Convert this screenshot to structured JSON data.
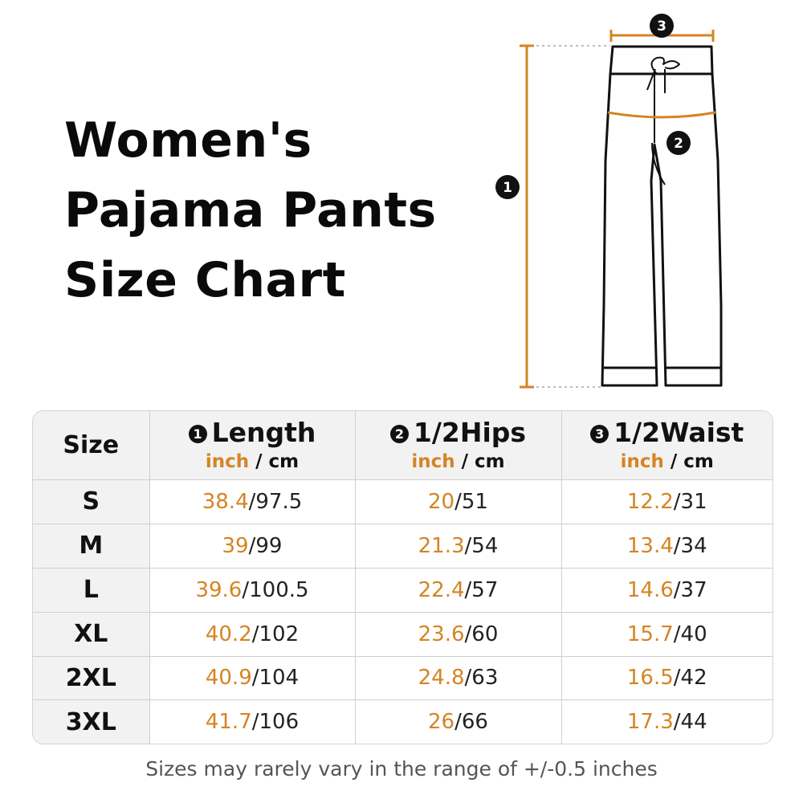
{
  "title": {
    "line1": "Women's",
    "line2": "Pajama Pants",
    "line3": "Size Chart"
  },
  "markers": {
    "length": "1",
    "hips": "2",
    "waist": "3"
  },
  "colors": {
    "accent": "#d58422",
    "text": "#111111",
    "header_bg": "#f2f2f2",
    "border": "#cfcfcf"
  },
  "table": {
    "size_header": "Size",
    "unit_inch": "inch",
    "unit_sep": " / ",
    "unit_cm": "cm",
    "columns": [
      {
        "num": "1",
        "name": "Length"
      },
      {
        "num": "2",
        "name": "1/2Hips"
      },
      {
        "num": "3",
        "name": "1/2Waist"
      }
    ],
    "rows": [
      {
        "size": "S",
        "length": {
          "inch": "38.4",
          "cm": "97.5"
        },
        "hips": {
          "inch": "20",
          "cm": "51"
        },
        "waist": {
          "inch": "12.2",
          "cm": "31"
        }
      },
      {
        "size": "M",
        "length": {
          "inch": "39",
          "cm": "99"
        },
        "hips": {
          "inch": "21.3",
          "cm": "54"
        },
        "waist": {
          "inch": "13.4",
          "cm": "34"
        }
      },
      {
        "size": "L",
        "length": {
          "inch": "39.6",
          "cm": "100.5"
        },
        "hips": {
          "inch": "22.4",
          "cm": "57"
        },
        "waist": {
          "inch": "14.6",
          "cm": "37"
        }
      },
      {
        "size": "XL",
        "length": {
          "inch": "40.2",
          "cm": "102"
        },
        "hips": {
          "inch": "23.6",
          "cm": "60"
        },
        "waist": {
          "inch": "15.7",
          "cm": "40"
        }
      },
      {
        "size": "2XL",
        "length": {
          "inch": "40.9",
          "cm": "104"
        },
        "hips": {
          "inch": "24.8",
          "cm": "63"
        },
        "waist": {
          "inch": "16.5",
          "cm": "42"
        }
      },
      {
        "size": "3XL",
        "length": {
          "inch": "41.7",
          "cm": "106"
        },
        "hips": {
          "inch": "26",
          "cm": "66"
        },
        "waist": {
          "inch": "17.3",
          "cm": "44"
        }
      }
    ]
  },
  "note": "Sizes may rarely vary in the range of +/-0.5 inches"
}
